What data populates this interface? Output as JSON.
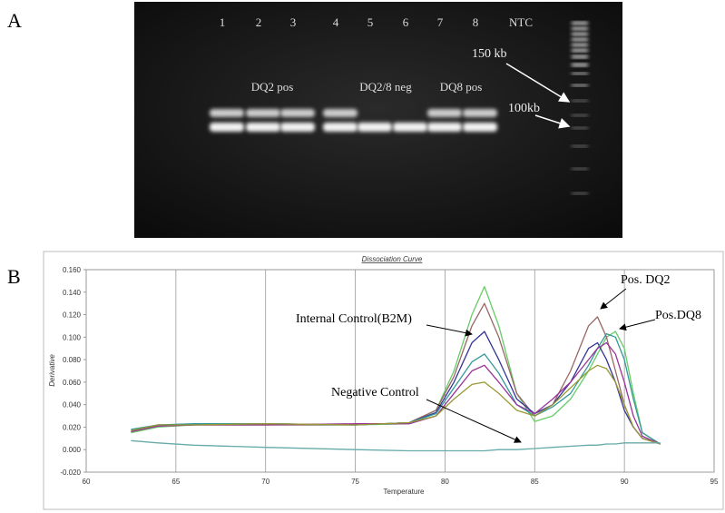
{
  "figure": {
    "label_a": "A",
    "label_b": "B",
    "gel": {
      "lanes": [
        "1",
        "2",
        "3",
        "4",
        "5",
        "6",
        "7",
        "8",
        "NTC"
      ],
      "groups": [
        "DQ2 pos",
        "DQ2/8 neg",
        "DQ8 pos"
      ],
      "markers": [
        "150 kb",
        "100kb"
      ]
    }
  },
  "chart_data": {
    "type": "line",
    "title": "Dissociation Curve",
    "x_label": "Temperature",
    "y_label": "Derivative",
    "x": [
      62.5,
      64,
      66,
      70,
      75,
      78,
      79.5,
      80.5,
      81.5,
      82.2,
      83,
      84,
      85,
      86,
      87,
      88,
      88.5,
      89,
      89.5,
      90,
      90.5,
      91,
      92
    ],
    "series": [
      {
        "color": "#66cc66",
        "values": [
          0.015,
          0.02,
          0.022,
          0.022,
          0.022,
          0.023,
          0.035,
          0.07,
          0.12,
          0.145,
          0.11,
          0.05,
          0.025,
          0.03,
          0.045,
          0.07,
          0.085,
          0.1,
          0.105,
          0.09,
          0.05,
          0.015,
          0.005
        ]
      },
      {
        "color": "#996666",
        "values": [
          0.016,
          0.021,
          0.022,
          0.022,
          0.022,
          0.024,
          0.035,
          0.065,
          0.11,
          0.13,
          0.1,
          0.05,
          0.03,
          0.04,
          0.07,
          0.11,
          0.118,
          0.1,
          0.07,
          0.04,
          0.02,
          0.01,
          0.005
        ]
      },
      {
        "color": "#333399",
        "values": [
          0.017,
          0.022,
          0.022,
          0.023,
          0.022,
          0.024,
          0.033,
          0.06,
          0.095,
          0.105,
          0.08,
          0.045,
          0.032,
          0.04,
          0.06,
          0.09,
          0.095,
          0.08,
          0.06,
          0.035,
          0.02,
          0.01,
          0.005
        ]
      },
      {
        "color": "#339999",
        "values": [
          0.018,
          0.022,
          0.023,
          0.023,
          0.022,
          0.024,
          0.032,
          0.055,
          0.078,
          0.085,
          0.068,
          0.04,
          0.03,
          0.038,
          0.05,
          0.075,
          0.09,
          0.103,
          0.1,
          0.08,
          0.045,
          0.015,
          0.005
        ]
      },
      {
        "color": "#993399",
        "values": [
          0.016,
          0.021,
          0.022,
          0.022,
          0.023,
          0.023,
          0.03,
          0.05,
          0.07,
          0.075,
          0.06,
          0.04,
          0.032,
          0.045,
          0.06,
          0.08,
          0.09,
          0.095,
          0.085,
          0.06,
          0.03,
          0.012,
          0.005
        ]
      },
      {
        "color": "#999933",
        "values": [
          0.017,
          0.022,
          0.022,
          0.023,
          0.022,
          0.024,
          0.03,
          0.045,
          0.058,
          0.06,
          0.05,
          0.035,
          0.03,
          0.04,
          0.055,
          0.07,
          0.075,
          0.072,
          0.06,
          0.04,
          0.02,
          0.01,
          0.005
        ]
      },
      {
        "color": "#66aaaa",
        "values": [
          0.008,
          0.006,
          0.004,
          0.002,
          0.0,
          -0.001,
          -0.001,
          -0.001,
          -0.001,
          -0.001,
          0.0,
          0.0,
          0.001,
          0.002,
          0.003,
          0.004,
          0.004,
          0.005,
          0.005,
          0.006,
          0.006,
          0.006,
          0.006
        ]
      }
    ],
    "xlim": [
      60,
      95
    ],
    "xticks": [
      60,
      65,
      70,
      75,
      80,
      85,
      90,
      95
    ],
    "ylim": [
      -0.02,
      0.16
    ],
    "yticks": [
      {
        "value": -0.02,
        "label": "-0.020"
      },
      {
        "value": 0,
        "label": "0.000"
      },
      {
        "value": 0.02,
        "label": "0.020"
      },
      {
        "value": 0.04,
        "label": "0.040"
      },
      {
        "value": 0.06,
        "label": "0.060"
      },
      {
        "value": 0.08,
        "label": "0.080"
      },
      {
        "value": 0.1,
        "label": "0.100"
      },
      {
        "value": 0.12,
        "label": "0.120"
      },
      {
        "value": 0.14,
        "label": "0.140"
      },
      {
        "value": 0.16,
        "label": "0.160"
      }
    ],
    "grid": "x",
    "annotations": [
      "Pos. DQ2",
      "Pos.DQ8",
      "Internal Control(B2M)",
      "Negative Control"
    ]
  }
}
